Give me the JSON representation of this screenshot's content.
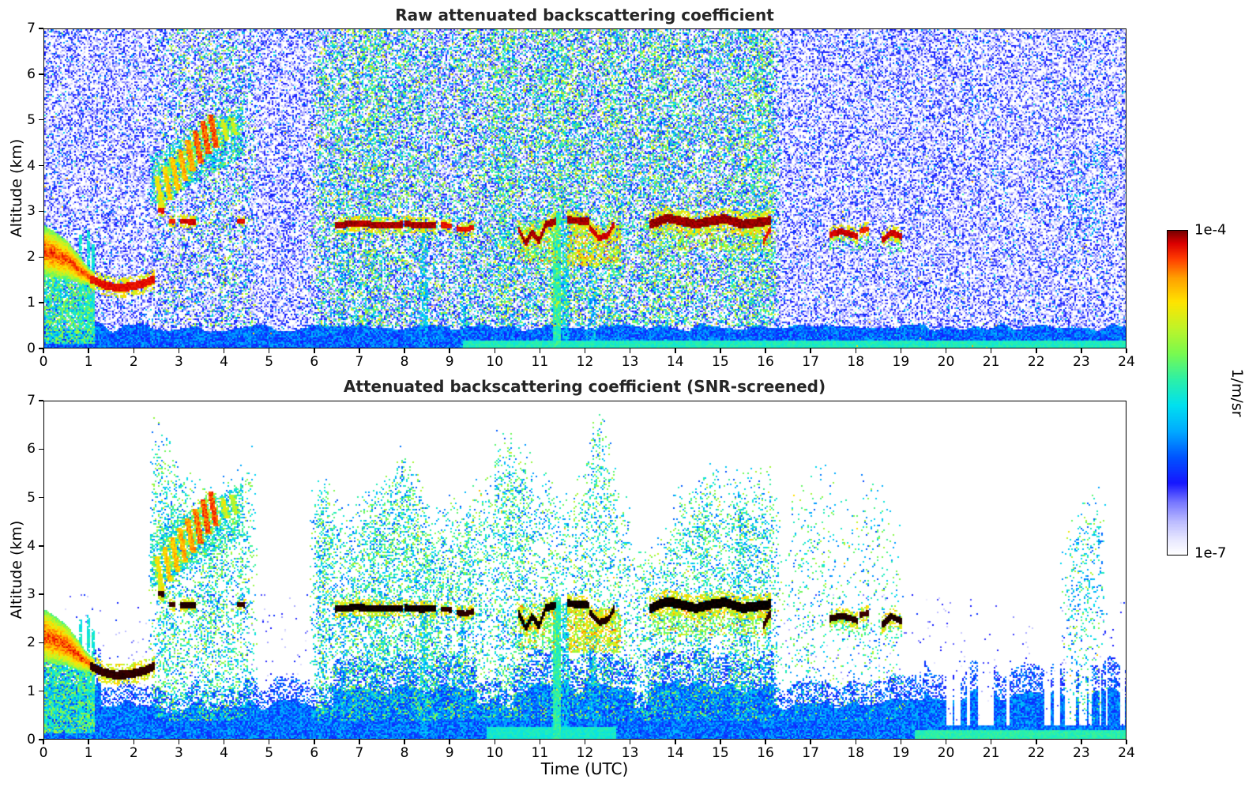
{
  "chart_data": {
    "type": "heatmap",
    "colorbar": {
      "top_label": "1e-4",
      "bottom_label": "1e-7",
      "units": "1/m/sr",
      "scale": "log10",
      "vmin_exp": -7,
      "vmax_exp": -4,
      "colormap_stops": [
        [
          0.0,
          "#ffffff"
        ],
        [
          0.045,
          "#e8e8ff"
        ],
        [
          0.1,
          "#bcbcff"
        ],
        [
          0.16,
          "#7878ff"
        ],
        [
          0.22,
          "#1616ff"
        ],
        [
          0.3,
          "#0054ff"
        ],
        [
          0.38,
          "#00aaff"
        ],
        [
          0.46,
          "#00e0f0"
        ],
        [
          0.54,
          "#2cf0a8"
        ],
        [
          0.62,
          "#78fa50"
        ],
        [
          0.7,
          "#c0f428"
        ],
        [
          0.78,
          "#ffe400"
        ],
        [
          0.855,
          "#ffa000"
        ],
        [
          0.915,
          "#ff3c00"
        ],
        [
          0.962,
          "#dc0000"
        ],
        [
          1.0,
          "#7a0000"
        ]
      ]
    },
    "plots": [
      {
        "id": "raw",
        "mode": "raw",
        "title": "Raw attenuated backscattering coefficient",
        "xlabel": "",
        "ylabel": "Altitude (km)",
        "xlim": [
          0,
          24
        ],
        "ylim": [
          0,
          7
        ],
        "x_ticks": [
          0,
          1,
          2,
          3,
          4,
          5,
          6,
          7,
          8,
          9,
          10,
          11,
          12,
          13,
          14,
          15,
          16,
          17,
          18,
          19,
          20,
          21,
          22,
          23,
          24
        ],
        "y_ticks": [
          0,
          1,
          2,
          3,
          4,
          5,
          6,
          7
        ]
      },
      {
        "id": "screened",
        "mode": "screened",
        "title": "Attenuated backscattering coefficient (SNR-screened)",
        "xlabel": "Time (UTC)",
        "ylabel": "Altitude (km)",
        "xlim": [
          0,
          24
        ],
        "ylim": [
          0,
          7
        ],
        "x_ticks": [
          0,
          1,
          2,
          3,
          4,
          5,
          6,
          7,
          8,
          9,
          10,
          11,
          12,
          13,
          14,
          15,
          16,
          17,
          18,
          19,
          20,
          21,
          22,
          23,
          24
        ],
        "y_ticks": [
          0,
          1,
          2,
          3,
          4,
          5,
          6,
          7
        ]
      }
    ],
    "features": {
      "cloud_lines": [
        {
          "pts": [
            [
              2.56,
              3.03
            ],
            [
              2.66,
              3.01
            ]
          ],
          "th": 0.06,
          "v": -4.1
        },
        {
          "pts": [
            [
              2.79,
              2.8
            ],
            [
              2.9,
              2.78
            ]
          ],
          "th": 0.05,
          "v": -4.15
        },
        {
          "pts": [
            [
              3.03,
              2.79
            ],
            [
              3.36,
              2.77
            ]
          ],
          "th": 0.06,
          "v": -4.05
        },
        {
          "pts": [
            [
              4.31,
              2.8
            ],
            [
              4.43,
              2.78
            ]
          ],
          "th": 0.05,
          "v": -4.1
        },
        {
          "pts": [
            [
              6.45,
              2.7
            ],
            [
              6.9,
              2.74
            ],
            [
              7.4,
              2.71
            ],
            [
              7.92,
              2.72
            ]
          ],
          "th": 0.07,
          "v": -4.0
        },
        {
          "pts": [
            [
              8.02,
              2.73
            ],
            [
              8.35,
              2.7
            ],
            [
              8.66,
              2.71
            ]
          ],
          "th": 0.07,
          "v": -4.0
        },
        {
          "pts": [
            [
              8.83,
              2.7
            ],
            [
              9.02,
              2.69
            ]
          ],
          "th": 0.06,
          "v": -4.1
        },
        {
          "pts": [
            [
              9.17,
              2.63
            ],
            [
              9.35,
              2.6
            ],
            [
              9.52,
              2.66
            ]
          ],
          "th": 0.06,
          "v": -4.1
        },
        {
          "pts": [
            [
              10.52,
              2.62
            ],
            [
              10.68,
              2.3
            ],
            [
              10.82,
              2.55
            ],
            [
              10.97,
              2.35
            ],
            [
              11.12,
              2.72
            ],
            [
              11.32,
              2.78
            ]
          ],
          "th": 0.08,
          "v": -4.0
        },
        {
          "pts": [
            [
              11.62,
              2.82
            ],
            [
              11.85,
              2.8
            ],
            [
              12.08,
              2.78
            ]
          ],
          "th": 0.08,
          "v": -4.0
        },
        {
          "pts": [
            [
              12.12,
              2.62
            ],
            [
              12.3,
              2.42
            ],
            [
              12.5,
              2.48
            ],
            [
              12.62,
              2.7
            ]
          ],
          "th": 0.07,
          "v": -4.05
        },
        {
          "pts": [
            [
              13.45,
              2.72
            ],
            [
              13.8,
              2.86
            ],
            [
              14.1,
              2.8
            ],
            [
              14.45,
              2.72
            ],
            [
              14.8,
              2.8
            ],
            [
              15.1,
              2.84
            ],
            [
              15.5,
              2.72
            ],
            [
              15.8,
              2.76
            ],
            [
              16.08,
              2.8
            ]
          ],
          "th": 0.1,
          "v": -3.98
        },
        {
          "pts": [
            [
              15.95,
              2.35
            ],
            [
              16.08,
              2.6
            ]
          ],
          "th": 0.07,
          "v": -4.1
        },
        {
          "pts": [
            [
              17.44,
              2.5
            ],
            [
              17.65,
              2.56
            ],
            [
              17.85,
              2.52
            ],
            [
              18.04,
              2.46
            ]
          ],
          "th": 0.07,
          "v": -4.05
        },
        {
          "pts": [
            [
              18.1,
              2.58
            ],
            [
              18.26,
              2.62
            ]
          ],
          "th": 0.06,
          "v": -4.15
        },
        {
          "pts": [
            [
              18.6,
              2.38
            ],
            [
              18.78,
              2.55
            ],
            [
              18.99,
              2.46
            ]
          ],
          "th": 0.07,
          "v": -4.05
        },
        {
          "pts": [
            [
              1.05,
              1.52
            ],
            [
              1.3,
              1.4
            ],
            [
              1.6,
              1.33
            ],
            [
              1.95,
              1.36
            ],
            [
              2.2,
              1.42
            ],
            [
              2.44,
              1.52
            ]
          ],
          "th": 0.09,
          "v": -4.1
        }
      ],
      "plume": {
        "pts": [
          [
            0,
            2.15,
            0.55
          ],
          [
            0.25,
            2.05,
            0.5
          ],
          [
            0.5,
            1.95,
            0.42
          ],
          [
            0.75,
            1.75,
            0.32
          ],
          [
            0.95,
            1.6,
            0.2
          ],
          [
            1.12,
            1.5,
            0.13
          ]
        ],
        "core_v": -4.25,
        "edge_v": -5.2
      },
      "plume_haze": {
        "t": [
          0,
          1.15
        ],
        "z_min": 0.12,
        "p": 0.8,
        "vr": [
          -5.95,
          -4.9
        ]
      },
      "cyan_spikes": [
        {
          "t": [
            0.78,
            0.84
          ],
          "z": [
            0.3,
            2.5
          ]
        },
        {
          "t": [
            0.95,
            1.01
          ],
          "z": [
            0.3,
            2.6
          ]
        },
        {
          "t": [
            1.05,
            1.11
          ],
          "z": [
            0.3,
            2.3
          ]
        }
      ],
      "virga_streaks": [
        {
          "t0": 2.5,
          "z0": 3.75,
          "t1": 2.62,
          "z1": 3.1,
          "w": 0.05,
          "v": -4.7
        },
        {
          "t0": 2.67,
          "z0": 3.95,
          "t1": 2.79,
          "z1": 3.3,
          "w": 0.05,
          "v": -4.6
        },
        {
          "t0": 2.84,
          "z0": 4.15,
          "t1": 2.96,
          "z1": 3.5,
          "w": 0.055,
          "v": -4.55
        },
        {
          "t0": 3.01,
          "z0": 4.35,
          "t1": 3.13,
          "z1": 3.7,
          "w": 0.055,
          "v": -4.5
        },
        {
          "t0": 3.18,
          "z0": 4.55,
          "t1": 3.3,
          "z1": 3.9,
          "w": 0.06,
          "v": -4.45
        },
        {
          "t0": 3.35,
          "z0": 4.75,
          "t1": 3.47,
          "z1": 4.1,
          "w": 0.06,
          "v": -4.35
        },
        {
          "t0": 3.52,
          "z0": 4.95,
          "t1": 3.64,
          "z1": 4.3,
          "w": 0.06,
          "v": -4.3
        },
        {
          "t0": 3.69,
          "z0": 5.1,
          "t1": 3.81,
          "z1": 4.45,
          "w": 0.06,
          "v": -4.3
        },
        {
          "t0": 3.95,
          "z0": 5.0,
          "t1": 4.05,
          "z1": 4.6,
          "w": 0.045,
          "v": -4.8
        },
        {
          "t0": 4.15,
          "z0": 5.05,
          "t1": 4.25,
          "z1": 4.7,
          "w": 0.045,
          "v": -4.9
        }
      ],
      "virga_haze": {
        "t": [
          2.35,
          4.4
        ],
        "z_bot": [
          3.1,
          4.2
        ],
        "z_top": [
          4.25,
          5.3
        ],
        "p": 0.5,
        "vr": [
          -6.0,
          -5.2
        ]
      },
      "haze_patches": [
        {
          "t": [
            10.5,
            11.35
          ],
          "z": [
            1.85,
            2.8
          ],
          "p": 0.4,
          "vr": [
            -5.5,
            -4.7
          ],
          "redp": 0.05
        },
        {
          "t": [
            11.6,
            12.78
          ],
          "z": [
            1.8,
            2.7
          ],
          "p": 0.55,
          "vr": [
            -5.2,
            -4.5
          ],
          "redp": 0.07
        },
        {
          "t": [
            13.5,
            16.1
          ],
          "z": [
            2.15,
            2.68
          ],
          "p": 0.3,
          "vr": [
            -5.3,
            -4.8
          ],
          "redp": 0.03
        },
        {
          "t": [
            17.4,
            18.3
          ],
          "z": [
            2.15,
            2.5
          ],
          "p": 0.22,
          "vr": [
            -5.6,
            -5.0
          ],
          "redp": 0
        },
        {
          "t": [
            18.5,
            19.05
          ],
          "z": [
            2.05,
            2.45
          ],
          "p": 0.22,
          "vr": [
            -5.6,
            -5.0
          ],
          "redp": 0
        },
        {
          "t": [
            22.7,
            23.5
          ],
          "z": [
            2.4,
            4.4
          ],
          "p": 0.1,
          "vr": [
            -6.1,
            -5.4
          ],
          "redp": 0
        }
      ],
      "shafts": [
        {
          "t": [
            11.28,
            11.44
          ],
          "z": [
            0,
            2.95
          ],
          "p": 0.95,
          "vr": [
            -5.6,
            -5.25
          ]
        },
        {
          "t": [
            11.5,
            11.63
          ],
          "z": [
            0,
            2.8
          ],
          "p": 0.6,
          "vr": [
            -5.9,
            -5.5
          ]
        },
        {
          "t": [
            8.35,
            8.52
          ],
          "z": [
            0,
            2.7
          ],
          "p": 0.5,
          "vr": [
            -6.0,
            -5.6
          ]
        },
        {
          "t": [
            12.05,
            12.25
          ],
          "z": [
            0,
            2.3
          ],
          "p": 0.45,
          "vr": [
            -6.0,
            -5.6
          ]
        },
        {
          "t": [
            6.55,
            6.7
          ],
          "z": [
            0,
            2.7
          ],
          "p": 0.35,
          "vr": [
            -6.1,
            -5.7
          ]
        },
        {
          "t": [
            9.2,
            9.35
          ],
          "z": [
            0,
            2.6
          ],
          "p": 0.35,
          "vr": [
            -6.1,
            -5.7
          ]
        }
      ],
      "noise": {
        "day_windows": [
          [
            5.85,
            16.35,
            1.0
          ],
          [
            2.35,
            4.75,
            0.55
          ]
        ],
        "screened_green_windows": [
          [
            5.85,
            16.4,
            1.0
          ],
          [
            2.3,
            4.75,
            0.9
          ],
          [
            16.4,
            19.1,
            0.3
          ],
          [
            22.5,
            23.6,
            0.25
          ]
        ],
        "low_bump_windows": [
          [
            6.4,
            9.6
          ],
          [
            10.4,
            13.1
          ],
          [
            13.4,
            16.2
          ]
        ],
        "stripe_t_min": 19.7
      }
    }
  }
}
